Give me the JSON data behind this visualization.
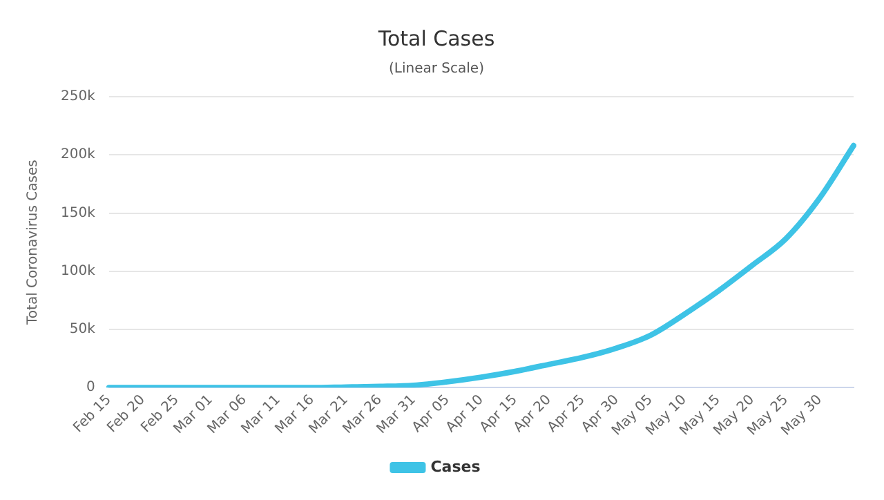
{
  "chart_data": {
    "type": "line",
    "title": "Total Cases",
    "subtitle": "(Linear Scale)",
    "ylabel": "Total Coronavirus Cases",
    "categories": [
      "Feb 15",
      "Feb 20",
      "Feb 25",
      "Mar 01",
      "Mar 06",
      "Mar 11",
      "Mar 16",
      "Mar 21",
      "Mar 26",
      "Mar 31",
      "Apr 05",
      "Apr 10",
      "Apr 15",
      "Apr 20",
      "Apr 25",
      "Apr 30",
      "May 05",
      "May 10",
      "May 15",
      "May 20",
      "May 25",
      "May 30",
      null
    ],
    "series": [
      {
        "name": "Cases",
        "color": "#3ec3e6",
        "values": [
          0,
          0,
          0,
          0,
          0,
          0,
          0,
          500,
          1000,
          2000,
          5000,
          9000,
          14000,
          20000,
          26000,
          34000,
          45000,
          63000,
          83000,
          105000,
          128000,
          163000,
          208000
        ]
      }
    ],
    "ylim": [
      0,
      250000
    ],
    "yticks": [
      0,
      {
        "value": 50000,
        "label": "50k"
      },
      {
        "value": 100000,
        "label": "100k"
      },
      {
        "value": 150000,
        "label": "150k"
      },
      {
        "value": 200000,
        "label": "200k"
      },
      {
        "value": 250000,
        "label": "250k"
      }
    ],
    "grid": "y",
    "legend": "bottom",
    "marker": "none",
    "line_style": "solid"
  }
}
